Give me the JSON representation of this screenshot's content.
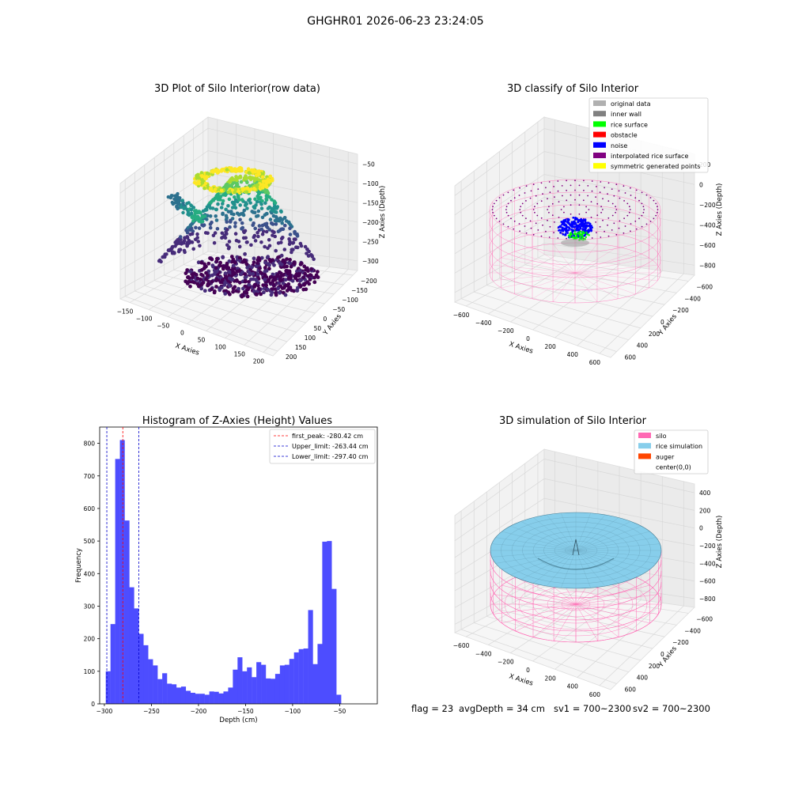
{
  "figure_title": "GHGHR01 2026-06-23 23:24:05",
  "footer": {
    "flag": "flag = 23",
    "avg_depth": "avgDepth = 34 cm",
    "sv1": "sv1 = 700~2300",
    "sv2": "sv2 = 700~2300"
  },
  "colors": {
    "hist_bar": "#4d4dff",
    "first_peak": "#ff0000",
    "limit": "#0000cc",
    "silo": "#ff69b4",
    "rice_sim": "#87ceeb",
    "auger": "#ff4500"
  },
  "chart_data": [
    {
      "type": "scatter",
      "subtype": "3d",
      "title": "3D Plot of Silo Interior(row data)",
      "xlabel": "X Axies",
      "ylabel": "Y Axies",
      "zlabel": "Z Axies (Depth)",
      "x_ticks": [
        "−150",
        "−100",
        "−50",
        "0",
        "50",
        "100",
        "150",
        "200"
      ],
      "y_ticks": [
        "−200",
        "−150",
        "−100",
        "−50",
        "0",
        "50",
        "100",
        "150",
        "200"
      ],
      "z_ticks": [
        "−50",
        "−100",
        "−150",
        "−200",
        "−250",
        "−300"
      ],
      "xlim": [
        -160,
        210
      ],
      "ylim": [
        -210,
        210
      ],
      "zlim": [
        -330,
        -30
      ],
      "colormap": "viridis (by depth)",
      "grid": true
    },
    {
      "type": "scatter",
      "subtype": "3d",
      "title": "3D classify of Silo Interior",
      "xlabel": "X Axies",
      "ylabel": "Y Axies",
      "zlabel": "Z Axies (Depth)",
      "x_ticks": [
        "−600",
        "−400",
        "−200",
        "0",
        "200",
        "400",
        "600"
      ],
      "y_ticks": [
        "−600",
        "−400",
        "−200",
        "0",
        "200",
        "400",
        "600"
      ],
      "z_ticks": [
        "200",
        "0",
        "−200",
        "−400",
        "−600",
        "−800"
      ],
      "xlim": [
        -700,
        700
      ],
      "ylim": [
        -700,
        700
      ],
      "zlim": [
        -900,
        300
      ],
      "legend_position": "top-right",
      "legend": [
        {
          "label": "original data",
          "color": "#b0b0b0"
        },
        {
          "label": "inner wall",
          "color": "#808080"
        },
        {
          "label": "rice surface",
          "color": "#00ff00"
        },
        {
          "label": "obstacle",
          "color": "#ff0000"
        },
        {
          "label": "noise",
          "color": "#0000ff"
        },
        {
          "label": "interpolated rice surface",
          "color": "#800080"
        },
        {
          "label": "symmetric generated points",
          "color": "#ffff00"
        }
      ],
      "grid": true
    },
    {
      "type": "bar",
      "subtype": "histogram",
      "title": "Histogram of Z-Axies (Height) Values",
      "xlabel": "Depth (cm)",
      "ylabel": "Frequency",
      "xlim": [
        -305,
        -10
      ],
      "ylim": [
        0,
        850
      ],
      "x_ticks": [
        -300,
        -250,
        -200,
        -150,
        -100,
        -50
      ],
      "y_ticks": [
        0,
        100,
        200,
        300,
        400,
        500,
        600,
        700,
        800
      ],
      "bin_start": -298.5,
      "bin_width": 5,
      "values": [
        100,
        245,
        752,
        810,
        563,
        358,
        293,
        215,
        180,
        137,
        118,
        76,
        94,
        62,
        60,
        50,
        53,
        40,
        34,
        31,
        31,
        28,
        38,
        37,
        32,
        38,
        50,
        105,
        143,
        100,
        112,
        82,
        128,
        120,
        78,
        77,
        92,
        118,
        120,
        138,
        158,
        168,
        170,
        288,
        122,
        184,
        498,
        500,
        353,
        28
      ],
      "vlines": [
        {
          "label": "first_peak: -280.42 cm",
          "x": -280.42,
          "style": "dashed",
          "color_key": "first_peak"
        },
        {
          "label": "Upper_limit: -263.44 cm",
          "x": -263.44,
          "style": "dashed",
          "color_key": "limit"
        },
        {
          "label": "Lower_limit: -297.40 cm",
          "x": -297.4,
          "style": "dashed",
          "color_key": "limit"
        }
      ],
      "legend_position": "top-right",
      "grid": false
    },
    {
      "type": "area",
      "subtype": "3d-surface",
      "title": "3D simulation of Silo Interior",
      "xlabel": "X Axies",
      "ylabel": "Y Axies",
      "zlabel": "Z Axies (Depth)",
      "x_ticks": [
        "−600",
        "−400",
        "−200",
        "0",
        "200",
        "400",
        "600"
      ],
      "y_ticks": [
        "−600",
        "−400",
        "−200",
        "0",
        "200",
        "400",
        "600"
      ],
      "z_ticks": [
        "400",
        "200",
        "0",
        "−200",
        "−400",
        "−600",
        "−800"
      ],
      "xlim": [
        -700,
        700
      ],
      "ylim": [
        -700,
        700
      ],
      "zlim": [
        -900,
        500
      ],
      "legend_position": "top-right",
      "legend": [
        {
          "label": "silo",
          "color": "#ff69b4"
        },
        {
          "label": "rice simulation",
          "color": "#87ceeb"
        },
        {
          "label": "auger",
          "color": "#ff4500"
        },
        {
          "label": "center(0,0)",
          "color": ""
        }
      ],
      "grid": true
    }
  ]
}
